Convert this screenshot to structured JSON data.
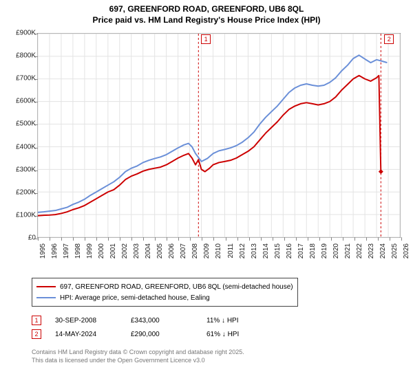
{
  "chart": {
    "type": "line",
    "title_main": "697, GREENFORD ROAD, GREENFORD, UB6 8QL",
    "title_sub": "Price paid vs. HM Land Registry's House Price Index (HPI)",
    "title_fontsize": 12,
    "background_color": "#ffffff",
    "grid_color": "#e3e3e3",
    "axis_color": "#888888",
    "x": {
      "start": 1995,
      "end": 2026,
      "ticks": [
        1995,
        1996,
        1997,
        1998,
        1999,
        2000,
        2001,
        2002,
        2003,
        2004,
        2005,
        2006,
        2007,
        2008,
        2009,
        2010,
        2011,
        2012,
        2013,
        2014,
        2015,
        2016,
        2017,
        2018,
        2019,
        2020,
        2021,
        2022,
        2023,
        2024,
        2025,
        2026
      ]
    },
    "y": {
      "min": 0,
      "max": 900000,
      "ticks": [
        0,
        100000,
        200000,
        300000,
        400000,
        500000,
        600000,
        700000,
        800000,
        900000
      ],
      "tick_labels": [
        "£0",
        "£100K",
        "£200K",
        "£300K",
        "£400K",
        "£500K",
        "£600K",
        "£700K",
        "£800K",
        "£900K"
      ]
    },
    "series": [
      {
        "name": "697, GREENFORD ROAD, GREENFORD, UB6 8QL (semi-detached house)",
        "color": "#cc0000",
        "width": 2,
        "data": [
          [
            1995.0,
            95000
          ],
          [
            1995.5,
            97000
          ],
          [
            1996.0,
            98000
          ],
          [
            1996.5,
            100000
          ],
          [
            1997.0,
            105000
          ],
          [
            1997.5,
            112000
          ],
          [
            1998.0,
            122000
          ],
          [
            1998.5,
            130000
          ],
          [
            1999.0,
            140000
          ],
          [
            1999.5,
            155000
          ],
          [
            2000.0,
            170000
          ],
          [
            2000.5,
            185000
          ],
          [
            2001.0,
            200000
          ],
          [
            2001.5,
            210000
          ],
          [
            2002.0,
            230000
          ],
          [
            2002.5,
            255000
          ],
          [
            2003.0,
            270000
          ],
          [
            2003.5,
            280000
          ],
          [
            2004.0,
            292000
          ],
          [
            2004.5,
            300000
          ],
          [
            2005.0,
            305000
          ],
          [
            2005.5,
            310000
          ],
          [
            2006.0,
            320000
          ],
          [
            2006.5,
            335000
          ],
          [
            2007.0,
            350000
          ],
          [
            2007.5,
            362000
          ],
          [
            2007.9,
            370000
          ],
          [
            2008.2,
            350000
          ],
          [
            2008.5,
            320000
          ],
          [
            2008.75,
            343000
          ],
          [
            2009.0,
            300000
          ],
          [
            2009.3,
            290000
          ],
          [
            2009.7,
            305000
          ],
          [
            2010.0,
            320000
          ],
          [
            2010.5,
            330000
          ],
          [
            2011.0,
            335000
          ],
          [
            2011.5,
            340000
          ],
          [
            2012.0,
            350000
          ],
          [
            2012.5,
            365000
          ],
          [
            2013.0,
            380000
          ],
          [
            2013.5,
            400000
          ],
          [
            2014.0,
            430000
          ],
          [
            2014.5,
            460000
          ],
          [
            2015.0,
            485000
          ],
          [
            2015.5,
            510000
          ],
          [
            2016.0,
            540000
          ],
          [
            2016.5,
            565000
          ],
          [
            2017.0,
            580000
          ],
          [
            2017.5,
            590000
          ],
          [
            2018.0,
            595000
          ],
          [
            2018.5,
            590000
          ],
          [
            2019.0,
            585000
          ],
          [
            2019.5,
            590000
          ],
          [
            2020.0,
            600000
          ],
          [
            2020.5,
            620000
          ],
          [
            2021.0,
            650000
          ],
          [
            2021.5,
            675000
          ],
          [
            2022.0,
            700000
          ],
          [
            2022.5,
            715000
          ],
          [
            2023.0,
            700000
          ],
          [
            2023.5,
            690000
          ],
          [
            2024.0,
            705000
          ],
          [
            2024.2,
            715000
          ],
          [
            2024.37,
            290000
          ]
        ],
        "end_marker": {
          "x": 2024.37,
          "y": 290000,
          "shape": "diamond",
          "size": 7
        }
      },
      {
        "name": "HPI: Average price, semi-detached house, Ealing",
        "color": "#6a8fd8",
        "width": 2,
        "data": [
          [
            1995.0,
            110000
          ],
          [
            1995.5,
            112000
          ],
          [
            1996.0,
            115000
          ],
          [
            1996.5,
            118000
          ],
          [
            1997.0,
            125000
          ],
          [
            1997.5,
            132000
          ],
          [
            1998.0,
            145000
          ],
          [
            1998.5,
            155000
          ],
          [
            1999.0,
            168000
          ],
          [
            1999.5,
            185000
          ],
          [
            2000.0,
            200000
          ],
          [
            2000.5,
            215000
          ],
          [
            2001.0,
            230000
          ],
          [
            2001.5,
            245000
          ],
          [
            2002.0,
            265000
          ],
          [
            2002.5,
            290000
          ],
          [
            2003.0,
            305000
          ],
          [
            2003.5,
            315000
          ],
          [
            2004.0,
            330000
          ],
          [
            2004.5,
            340000
          ],
          [
            2005.0,
            348000
          ],
          [
            2005.5,
            355000
          ],
          [
            2006.0,
            365000
          ],
          [
            2006.5,
            380000
          ],
          [
            2007.0,
            395000
          ],
          [
            2007.5,
            408000
          ],
          [
            2007.9,
            415000
          ],
          [
            2008.2,
            400000
          ],
          [
            2008.5,
            370000
          ],
          [
            2009.0,
            335000
          ],
          [
            2009.5,
            348000
          ],
          [
            2010.0,
            370000
          ],
          [
            2010.5,
            382000
          ],
          [
            2011.0,
            388000
          ],
          [
            2011.5,
            395000
          ],
          [
            2012.0,
            405000
          ],
          [
            2012.5,
            420000
          ],
          [
            2013.0,
            440000
          ],
          [
            2013.5,
            465000
          ],
          [
            2014.0,
            500000
          ],
          [
            2014.5,
            530000
          ],
          [
            2015.0,
            555000
          ],
          [
            2015.5,
            580000
          ],
          [
            2016.0,
            610000
          ],
          [
            2016.5,
            640000
          ],
          [
            2017.0,
            660000
          ],
          [
            2017.5,
            672000
          ],
          [
            2018.0,
            678000
          ],
          [
            2018.5,
            672000
          ],
          [
            2019.0,
            668000
          ],
          [
            2019.5,
            672000
          ],
          [
            2020.0,
            685000
          ],
          [
            2020.5,
            705000
          ],
          [
            2021.0,
            735000
          ],
          [
            2021.5,
            760000
          ],
          [
            2022.0,
            790000
          ],
          [
            2022.5,
            805000
          ],
          [
            2023.0,
            788000
          ],
          [
            2023.5,
            772000
          ],
          [
            2024.0,
            785000
          ],
          [
            2024.5,
            778000
          ],
          [
            2024.9,
            772000
          ]
        ]
      }
    ],
    "event_markers": [
      {
        "num": "1",
        "x": 2008.75,
        "color": "#cc0000",
        "line_dash": "3,3"
      },
      {
        "num": "2",
        "x": 2024.37,
        "color": "#cc0000",
        "line_dash": "3,3"
      }
    ]
  },
  "legend": {
    "items": [
      {
        "color": "#cc0000",
        "label": "697, GREENFORD ROAD, GREENFORD, UB6 8QL (semi-detached house)"
      },
      {
        "color": "#6a8fd8",
        "label": "HPI: Average price, semi-detached house, Ealing"
      }
    ]
  },
  "events_table": {
    "rows": [
      {
        "num": "1",
        "color": "#cc0000",
        "date": "30-SEP-2008",
        "price": "£343,000",
        "pct": "11%",
        "suffix": "HPI"
      },
      {
        "num": "2",
        "color": "#cc0000",
        "date": "14-MAY-2024",
        "price": "£290,000",
        "pct": "61%",
        "suffix": "HPI"
      }
    ]
  },
  "footer": {
    "line1": "Contains HM Land Registry data © Crown copyright and database right 2025.",
    "line2": "This data is licensed under the Open Government Licence v3.0"
  }
}
